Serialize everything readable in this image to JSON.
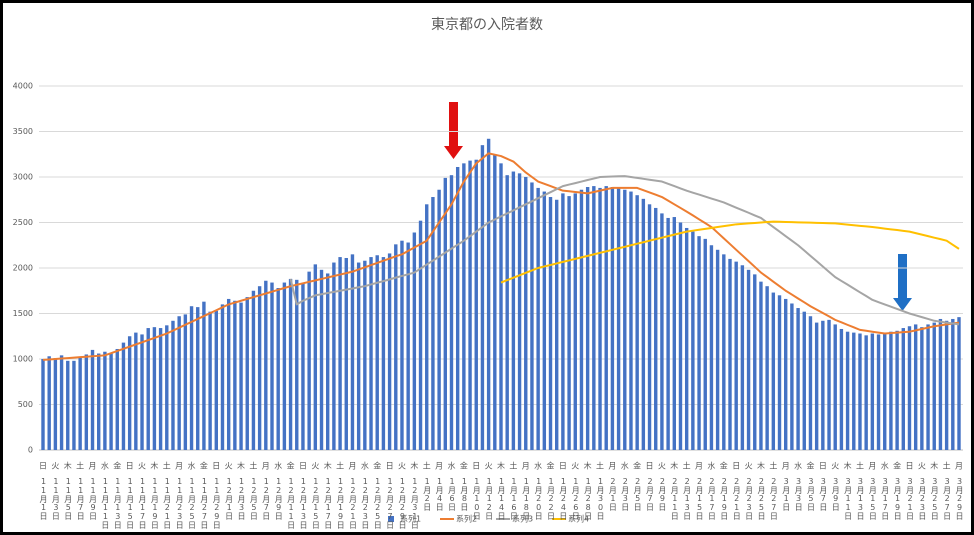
{
  "chart_data": {
    "type": "bar",
    "title": "東京都の入院者数",
    "categories": [
      "11月1日",
      null,
      "11月3日",
      null,
      "11月5日",
      null,
      "11月7日",
      null,
      "11月9日",
      null,
      "11月11日",
      null,
      "11月13日",
      null,
      "11月15日",
      null,
      "11月17日",
      null,
      "11月19日",
      null,
      "11月21日",
      null,
      "11月23日",
      null,
      "11月25日",
      null,
      "11月27日",
      null,
      "11月29日",
      null,
      "12月1日",
      null,
      "12月3日",
      null,
      "12月5日",
      null,
      "12月7日",
      null,
      "12月9日",
      null,
      "12月11日",
      null,
      "12月13日",
      null,
      "12月15日",
      null,
      "12月17日",
      null,
      "12月19日",
      null,
      "12月21日",
      null,
      "12月23日",
      null,
      "12月25日",
      null,
      "12月27日",
      null,
      "12月29日",
      null,
      "12月31日",
      null,
      "1月2日",
      null,
      "1月4日",
      null,
      "1月6日",
      null,
      "1月8日",
      null,
      "1月10日",
      null,
      "1月12日",
      null,
      "1月14日",
      null,
      "1月16日",
      null,
      "1月18日",
      null,
      "1月20日",
      null,
      "1月22日",
      null,
      "1月24日",
      null,
      "1月26日",
      null,
      "1月28日",
      null,
      "1月30日",
      null,
      "2月1日",
      null,
      "2月3日",
      null,
      "2月5日",
      null,
      "2月7日",
      null,
      "2月9日",
      null,
      "2月11日",
      null,
      "2月13日",
      null,
      "2月15日",
      null,
      "2月17日",
      null,
      "2月19日",
      null,
      "2月21日",
      null,
      "2月23日",
      null,
      "2月25日",
      null,
      "2月27日",
      null,
      "3月1日",
      null,
      "3月3日",
      null,
      "3月5日",
      null,
      "3月7日",
      null,
      "3月9日",
      null,
      "3月11日",
      null,
      "3月13日",
      null,
      "3月15日",
      null,
      "3月17日",
      null,
      "3月19日",
      null,
      "3月21日",
      null,
      "3月23日",
      null,
      "3月25日",
      null,
      "3月27日",
      null,
      "3月29日"
    ],
    "weekdays": [
      "日",
      null,
      "火",
      null,
      "木",
      null,
      "土",
      null,
      "月",
      null,
      "水",
      null,
      "金",
      null,
      "日",
      null,
      "火",
      null,
      "木",
      null,
      "土",
      null,
      "月",
      null,
      "水",
      null,
      "金",
      null,
      "日",
      null,
      "火",
      null,
      "木",
      null,
      "土",
      null,
      "月",
      null,
      "水",
      null,
      "金",
      null,
      "日",
      null,
      "火",
      null,
      "木",
      null,
      "土",
      null,
      "月",
      null,
      "水",
      null,
      "金",
      null,
      "日",
      null,
      "火",
      null,
      "木",
      null,
      "土",
      null,
      "月",
      null,
      "水",
      null,
      "金",
      null,
      "日",
      null,
      "火",
      null,
      "木",
      null,
      "土",
      null,
      "月",
      null,
      "水",
      null,
      "金",
      null,
      "日",
      null,
      "火",
      null,
      "木",
      null,
      "土",
      null,
      "月",
      null,
      "水",
      null,
      "金",
      null,
      "日",
      null,
      "火",
      null,
      "木",
      null,
      "土",
      null,
      "月",
      null,
      "水",
      null,
      "金",
      null,
      "日",
      null,
      "火",
      null,
      "木",
      null,
      "土",
      null,
      "月",
      null,
      "水",
      null,
      "金",
      null,
      "日",
      null,
      "火",
      null,
      "木",
      null,
      "土",
      null,
      "月",
      null,
      "水",
      null,
      "金",
      null,
      "日",
      null,
      "火",
      null,
      "木",
      null,
      "土",
      null,
      "月"
    ],
    "series": [
      {
        "name": "系列1",
        "type": "bar",
        "color": "#4472c4",
        "values": [
          1000,
          1030,
          1010,
          1040,
          980,
          980,
          1020,
          1050,
          1100,
          1060,
          1080,
          1060,
          1110,
          1180,
          1250,
          1290,
          1270,
          1340,
          1350,
          1340,
          1370,
          1420,
          1470,
          1490,
          1580,
          1570,
          1630,
          1520,
          1530,
          1600,
          1660,
          1640,
          1620,
          1680,
          1750,
          1800,
          1860,
          1840,
          1780,
          1840,
          1880,
          1870,
          1830,
          1960,
          2040,
          1980,
          1940,
          2060,
          2120,
          2110,
          2150,
          2060,
          2080,
          2120,
          2140,
          2120,
          2160,
          2260,
          2300,
          2280,
          2390,
          2520,
          2700,
          2780,
          2860,
          2990,
          3020,
          3110,
          3150,
          3180,
          3190,
          3350,
          3420,
          3250,
          3150,
          3020,
          3060,
          3040,
          3000,
          2940,
          2880,
          2840,
          2780,
          2750,
          2820,
          2790,
          2820,
          2860,
          2890,
          2900,
          2880,
          2900,
          2890,
          2880,
          2860,
          2840,
          2800,
          2760,
          2700,
          2660,
          2600,
          2550,
          2560,
          2500,
          2440,
          2400,
          2350,
          2320,
          2250,
          2200,
          2150,
          2100,
          2070,
          2030,
          1980,
          1930,
          1850,
          1800,
          1730,
          1700,
          1660,
          1610,
          1560,
          1520,
          1470,
          1400,
          1420,
          1430,
          1380,
          1330,
          1300,
          1290,
          1280,
          1260,
          1280,
          1270,
          1290,
          1300,
          1310,
          1340,
          1360,
          1380,
          1350,
          1380,
          1400,
          1440,
          1420,
          1440,
          1460
        ]
      },
      {
        "name": "系列2",
        "type": "line",
        "color": "#ed7d31",
        "values": [
          990,
          995,
          1000,
          1005,
          1010,
          1015,
          1020,
          1025,
          1030,
          1035,
          1040,
          1064,
          1088,
          1112,
          1136,
          1160,
          1184,
          1208,
          1232,
          1256,
          1280,
          1312,
          1344,
          1376,
          1408,
          1440,
          1472,
          1504,
          1536,
          1568,
          1600,
          1620,
          1640,
          1660,
          1680,
          1700,
          1720,
          1740,
          1760,
          1780,
          1800,
          1816,
          1832,
          1848,
          1864,
          1880,
          1896,
          1912,
          1928,
          1944,
          1960,
          1984,
          2008,
          2032,
          2056,
          2080,
          2104,
          2128,
          2150,
          2188,
          2225,
          2262,
          2300,
          2400,
          2500,
          2600,
          2700,
          2825,
          2950,
          3050,
          3150,
          3205,
          3260,
          3245,
          3230,
          3200,
          3170,
          3110,
          3050,
          3000,
          2950,
          2925,
          2900,
          2875,
          2850,
          2843,
          2835,
          2828,
          2820,
          2835,
          2850,
          2865,
          2880,
          2880,
          2880,
          2880,
          2880,
          2855,
          2830,
          2805,
          2780,
          2740,
          2700,
          2660,
          2620,
          2578,
          2535,
          2493,
          2450,
          2388,
          2325,
          2263,
          2200,
          2138,
          2075,
          2013,
          1950,
          1900,
          1850,
          1800,
          1750,
          1708,
          1665,
          1623,
          1580,
          1543,
          1505,
          1468,
          1430,
          1403,
          1375,
          1348,
          1320,
          1310,
          1300,
          1290,
          1280,
          1285,
          1290,
          1295,
          1300,
          1315,
          1330,
          1345,
          1360,
          1370,
          1380,
          1390,
          1400
        ]
      },
      {
        "name": "系列3",
        "type": "line",
        "color": "#a5a5a5",
        "values": [
          null,
          null,
          null,
          null,
          null,
          null,
          null,
          null,
          null,
          null,
          null,
          null,
          null,
          null,
          null,
          null,
          null,
          null,
          null,
          null,
          null,
          null,
          null,
          null,
          null,
          null,
          null,
          null,
          null,
          null,
          null,
          null,
          null,
          null,
          null,
          null,
          null,
          null,
          null,
          null,
          1880,
          1600,
          1640,
          1670,
          1700,
          1712,
          1725,
          1738,
          1750,
          1762,
          1775,
          1788,
          1800,
          1819,
          1838,
          1856,
          1875,
          1894,
          1913,
          1931,
          1950,
          1994,
          2038,
          2081,
          2125,
          2169,
          2213,
          2256,
          2300,
          2350,
          2400,
          2450,
          2500,
          2533,
          2567,
          2600,
          2633,
          2667,
          2700,
          2733,
          2767,
          2800,
          2833,
          2867,
          2900,
          2917,
          2933,
          2950,
          2967,
          2983,
          3000,
          3003,
          3005,
          3008,
          3010,
          3000,
          2990,
          2980,
          2970,
          2960,
          2950,
          2925,
          2900,
          2875,
          2850,
          2828,
          2807,
          2785,
          2763,
          2742,
          2720,
          2692,
          2663,
          2635,
          2607,
          2578,
          2550,
          2500,
          2450,
          2400,
          2350,
          2300,
          2250,
          2192,
          2133,
          2075,
          2017,
          1958,
          1900,
          1858,
          1817,
          1775,
          1733,
          1692,
          1650,
          1625,
          1600,
          1575,
          1550,
          1525,
          1500,
          1480,
          1460,
          1440,
          1420,
          1410,
          1400,
          1390,
          1380
        ]
      },
      {
        "name": "系列4",
        "type": "line",
        "color": "#ffc000",
        "values": [
          null,
          null,
          null,
          null,
          null,
          null,
          null,
          null,
          null,
          null,
          null,
          null,
          null,
          null,
          null,
          null,
          null,
          null,
          null,
          null,
          null,
          null,
          null,
          null,
          null,
          null,
          null,
          null,
          null,
          null,
          null,
          null,
          null,
          null,
          null,
          null,
          null,
          null,
          null,
          null,
          null,
          null,
          null,
          null,
          null,
          null,
          null,
          null,
          null,
          null,
          null,
          null,
          null,
          null,
          null,
          null,
          null,
          null,
          null,
          null,
          null,
          null,
          null,
          null,
          null,
          null,
          null,
          null,
          null,
          null,
          null,
          null,
          null,
          null,
          1840,
          1867,
          1893,
          1920,
          1947,
          1973,
          2000,
          2017,
          2033,
          2050,
          2067,
          2083,
          2100,
          2117,
          2133,
          2150,
          2167,
          2183,
          2200,
          2217,
          2233,
          2250,
          2267,
          2283,
          2300,
          2317,
          2333,
          2350,
          2367,
          2383,
          2400,
          2410,
          2420,
          2430,
          2440,
          2450,
          2460,
          2470,
          2480,
          2485,
          2490,
          2495,
          2500,
          2505,
          2510,
          2508,
          2506,
          2504,
          2502,
          2500,
          2498,
          2496,
          2494,
          2492,
          2490,
          2483,
          2477,
          2470,
          2463,
          2457,
          2450,
          2442,
          2433,
          2425,
          2417,
          2408,
          2400,
          2383,
          2367,
          2350,
          2333,
          2317,
          2300,
          2255,
          2210
        ]
      }
    ],
    "ylim": [
      0,
      4000
    ],
    "yticks": [
      0,
      500,
      1000,
      1500,
      2000,
      2500,
      3000,
      3500,
      4000
    ],
    "grid": true,
    "legend": "bottom"
  }
}
